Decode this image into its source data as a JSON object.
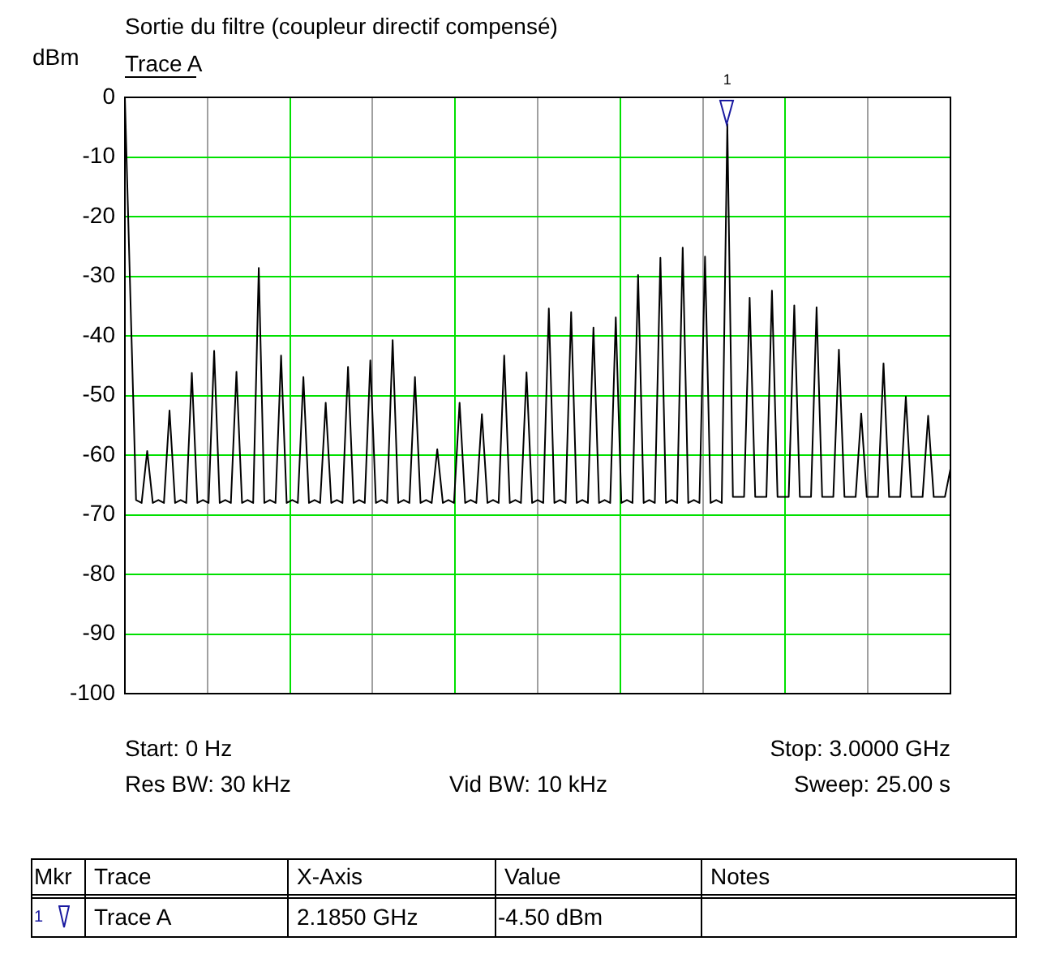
{
  "chart_data": {
    "type": "line",
    "title": "Sortie du filtre (coupleur directif compensé)",
    "subtitle": "Trace A",
    "ylabel": "dBm",
    "categories": [
      null,
      null,
      null,
      null,
      null,
      null,
      null,
      null,
      null,
      null,
      null,
      null,
      null,
      null,
      null,
      null,
      null,
      null,
      null,
      null,
      null,
      null,
      null,
      null,
      null,
      null,
      null,
      null,
      null,
      null,
      null,
      null,
      null,
      null,
      null,
      null,
      null,
      null,
      null,
      null,
      null,
      null,
      null,
      null,
      null,
      null,
      null,
      null,
      null,
      null,
      null,
      null,
      null,
      null,
      null,
      null,
      null,
      null,
      null,
      null,
      null,
      null,
      null,
      null,
      null,
      null,
      null,
      null,
      null,
      null,
      null,
      null,
      null,
      null,
      null,
      null,
      null,
      null,
      null,
      null,
      null,
      null,
      null,
      null,
      null,
      null,
      null,
      null,
      null,
      null,
      null,
      null,
      null,
      null,
      null,
      null,
      null,
      null,
      null,
      null,
      null,
      null,
      null,
      null,
      null,
      null,
      null,
      null,
      null,
      null,
      null,
      null,
      null,
      null,
      null,
      null,
      null,
      null,
      null,
      null,
      null,
      null,
      null,
      null,
      null,
      null,
      null,
      null,
      null,
      null,
      null,
      null,
      null,
      null,
      null,
      null,
      null,
      null,
      null,
      null,
      null,
      null,
      null,
      null,
      null,
      null,
      null,
      null,
      null
    ],
    "ylim": [
      -100,
      0
    ],
    "yticks": [
      0,
      -10,
      -20,
      -30,
      -40,
      -50,
      -60,
      -70,
      -80,
      -90,
      -100
    ],
    "grid": true,
    "tick_labels": "y",
    "legend": false,
    "marker": "none",
    "line_style": "solid",
    "annotations": [
      "Start: 0 Hz",
      "Stop: 3.0000 GHz",
      "Res BW: 30 kHz",
      "Vid BW: 10 kHz",
      "Sweep: 25.00 s",
      {
        "text": "1",
        "y": -4.5
      },
      "Mkr",
      "Trace",
      "X-Axis",
      "Value",
      "Notes",
      "1",
      "Trace A",
      "2.1850 GHz",
      "-4.50 dBm"
    ],
    "series": [
      {
        "color": "#000000",
        "values": [
          0,
          -34,
          -67.5,
          -68,
          -59.3,
          -68,
          -67.5,
          -68,
          -52.5,
          -68,
          -67.5,
          -68,
          -46.2,
          -68,
          -67.5,
          -68,
          -42.5,
          -68,
          -67.5,
          -68,
          -46,
          -68,
          -67.5,
          -68,
          -28.6,
          -68,
          -67.5,
          -68,
          -43.3,
          -68,
          -67.5,
          -68,
          -46.9,
          -68,
          -67.5,
          -68,
          -51.2,
          -68,
          -67.5,
          -68,
          -45.2,
          -68,
          -67.5,
          -68,
          -44.1,
          -68,
          -67.5,
          -68,
          -40.7,
          -68,
          -67.5,
          -68,
          -46.9,
          -68,
          -67.5,
          -68,
          -59,
          -68,
          -67.5,
          -68,
          -51.2,
          -68,
          -67.5,
          -68,
          -53.1,
          -68,
          -67.5,
          -68,
          -43.3,
          -68,
          -67.5,
          -68,
          -46.1,
          -68,
          -67.5,
          -68,
          -35.4,
          -68,
          -67.5,
          -68,
          -36,
          -68,
          -67.5,
          -68,
          -38.6,
          -68,
          -67.5,
          -68,
          -36.9,
          -68,
          -67.5,
          -68,
          -29.8,
          -68,
          -67.5,
          -68,
          -26.9,
          -68,
          -67.5,
          -68,
          -25.2,
          -68,
          -67.5,
          -68,
          -26.7,
          -68,
          -67.5,
          -68,
          -4.5,
          -67,
          -67,
          -67,
          -33.6,
          -67,
          -67,
          -67,
          -32.4,
          -67,
          -67,
          -67,
          -34.9,
          -67,
          -67,
          -67,
          -35.2,
          -67,
          -67,
          -67,
          -42.3,
          -67,
          -67,
          -67,
          -53,
          -67,
          -67,
          -67,
          -44.6,
          -67,
          -67,
          -67,
          -50.2,
          -67,
          -67,
          -67,
          -53.4,
          -67,
          -67,
          -67,
          -62.3
        ]
      }
    ]
  }
}
